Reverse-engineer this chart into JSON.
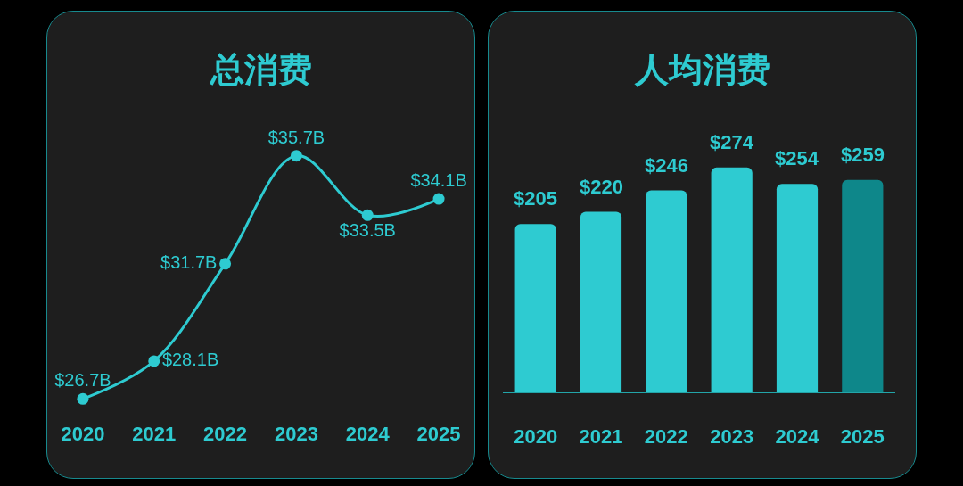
{
  "chart_data": [
    {
      "type": "line",
      "title": "总消费",
      "categories": [
        "2020",
        "2021",
        "2022",
        "2023",
        "2024",
        "2025"
      ],
      "values": [
        26.7,
        28.1,
        31.7,
        35.7,
        33.5,
        34.1
      ],
      "value_labels": [
        "$26.7B",
        "$28.1B",
        "$31.7B",
        "$35.7B",
        "$33.5B",
        "$34.1B"
      ],
      "color": "#2ecbd1",
      "marker": "circle",
      "line_style": "solid",
      "tick_labels": "x"
    },
    {
      "type": "bar",
      "title": "人均消费",
      "categories": [
        "2020",
        "2021",
        "2022",
        "2023",
        "2024",
        "2025"
      ],
      "values": [
        205,
        220,
        246,
        274,
        254,
        259
      ],
      "value_labels": [
        "$205",
        "$220",
        "$246",
        "$274",
        "$254",
        "$259"
      ],
      "colors": [
        "#2ecbd1",
        "#2ecbd1",
        "#2ecbd1",
        "#2ecbd1",
        "#2ecbd1",
        "#0e878a"
      ],
      "tick_labels": "x"
    }
  ]
}
